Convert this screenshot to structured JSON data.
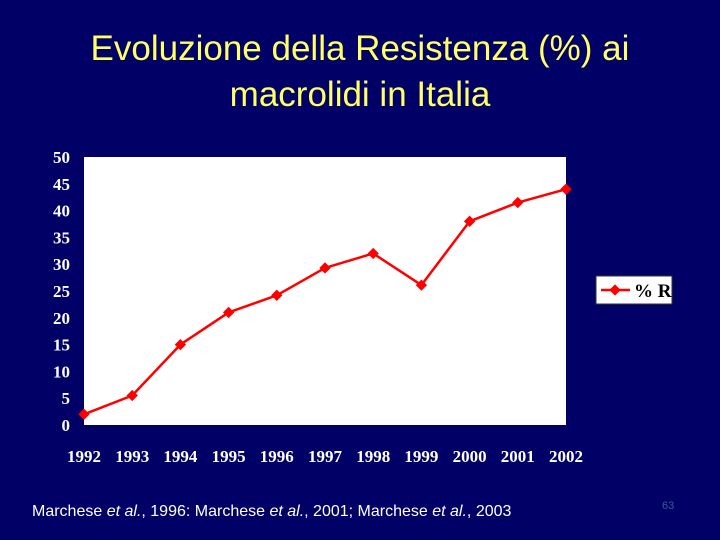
{
  "slide": {
    "title_line1": "Evoluzione della Resistenza (%) ai",
    "title_line2": "macrolidi in Italia",
    "citation": [
      {
        "text": "Marchese ",
        "italic": false
      },
      {
        "text": "et al.",
        "italic": true
      },
      {
        "text": ", 1996: Marchese ",
        "italic": false
      },
      {
        "text": "et al.",
        "italic": true
      },
      {
        "text": ", 2001; Marchese ",
        "italic": false
      },
      {
        "text": "et al.",
        "italic": true
      },
      {
        "text": ", 2003",
        "italic": false
      }
    ],
    "page_number": "63"
  },
  "colors": {
    "background": "#000066",
    "title": "#ffff66",
    "plot_background": "#ffffff",
    "series": "#ff0000",
    "text": "#ffffff"
  },
  "chart_data": {
    "type": "line",
    "title": "",
    "xlabel": "",
    "ylabel": "",
    "categories": [
      "1992",
      "1993",
      "1994",
      "1995",
      "1996",
      "1997",
      "1998",
      "1999",
      "2000",
      "2001",
      "2002"
    ],
    "series": [
      {
        "name": "% R",
        "values": [
          2,
          5.5,
          15,
          21,
          24.2,
          29.3,
          32,
          26.1,
          38,
          41.5,
          44
        ]
      }
    ],
    "ylim": [
      0,
      50
    ],
    "yticks": [
      "0",
      "5",
      "10",
      "15",
      "20",
      "25",
      "30",
      "35",
      "40",
      "45",
      "50"
    ],
    "grid": false,
    "legend": "right"
  }
}
